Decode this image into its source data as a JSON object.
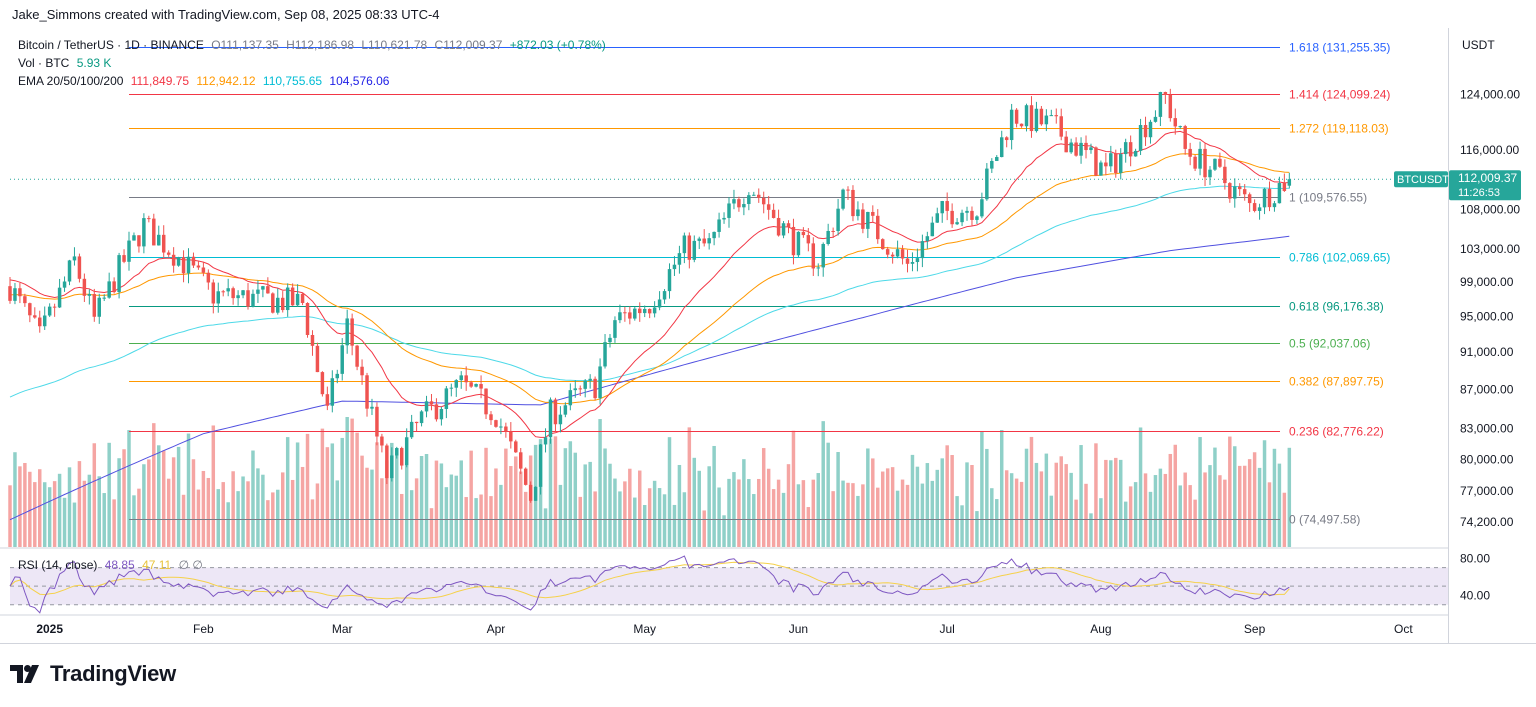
{
  "attribution": "Jake_Simmons created with TradingView.com, Sep 08, 2025 08:33 UTC-4",
  "brand": {
    "name": "TradingView",
    "icon": "tradingview-logo-icon"
  },
  "legend": {
    "symbol": "Bitcoin / TetherUS · 1D · BINANCE",
    "open": "O111,137.35",
    "high": "H112,186.98",
    "low": "L110,621.78",
    "close": "C112,009.37",
    "change": "+872.03 (+0.78%)",
    "volume_label": "Vol · BTC",
    "volume_value": "5.93 K",
    "ema_label": "EMA 20/50/100/200",
    "ema_values": [
      {
        "value": "111,849.75",
        "color": "#f23645"
      },
      {
        "value": "112,942.12",
        "color": "#ff9800"
      },
      {
        "value": "110,755.65",
        "color": "#00bcd4"
      },
      {
        "value": "104,576.06",
        "color": "#1e1ee6"
      }
    ],
    "rsi_label": "RSI (14, close)",
    "rsi_value": "48.85",
    "rsi_ma_value": "47.11",
    "rsi_extra": "∅ ∅"
  },
  "price_axis": {
    "currency": "USDT",
    "ticks": [
      "124,000.00",
      "116,000.00",
      "108,000.00",
      "103,000.00",
      "99,000.00",
      "95,000.00",
      "91,000.00",
      "87,000.00",
      "83,000.00",
      "80,000.00",
      "77,000.00",
      "74,200.00"
    ],
    "current_symbol": "BTCUSDT",
    "current_price": "112,009.37",
    "countdown": "11:26:53"
  },
  "rsi_axis": {
    "ticks": [
      "80.00",
      "40.00"
    ]
  },
  "time_axis": {
    "labels": [
      "2025",
      "Feb",
      "Mar",
      "Apr",
      "May",
      "Jun",
      "Jul",
      "Aug",
      "Sep",
      "Oct"
    ]
  },
  "colors": {
    "up": "#26a69a",
    "down": "#ef5350",
    "up_vol": "#8fd0c8",
    "down_vol": "#f5a5a3",
    "ema20": "#f23645",
    "ema50": "#ff9800",
    "ema100": "#4dd9e8",
    "ema200": "#5050e0",
    "rsi": "#7e57c2",
    "rsi_ma": "#f5d14a"
  },
  "chart_data": {
    "type": "candlestick",
    "title": "Bitcoin / TetherUS · 1D · BINANCE",
    "ylabel": "USDT",
    "y_scale": "log",
    "ylim": [
      72000,
      134000
    ],
    "x_range": [
      "2024-12-24",
      "2025-10-10"
    ],
    "x_ticks": [
      "2025",
      "Feb",
      "Mar",
      "Apr",
      "May",
      "Jun",
      "Jul",
      "Aug",
      "Sep",
      "Oct"
    ],
    "fib_levels": [
      {
        "label": "1.618 (131,255.35)",
        "value": 131255.35,
        "color": "#2962ff"
      },
      {
        "label": "1.414 (124,099.24)",
        "value": 124099.24,
        "color": "#f23645"
      },
      {
        "label": "1.272 (119,118.03)",
        "value": 119118.03,
        "color": "#ff9800"
      },
      {
        "label": "1 (109,576.55)",
        "value": 109576.55,
        "color": "#787b86"
      },
      {
        "label": "0.786 (102,069.65)",
        "value": 102069.65,
        "color": "#00bcd4"
      },
      {
        "label": "0.618 (96,176.38)",
        "value": 96176.38,
        "color": "#089981"
      },
      {
        "label": "0.5 (92,037.06)",
        "value": 92037.06,
        "color": "#4caf50"
      },
      {
        "label": "0.382 (87,897.75)",
        "value": 87897.75,
        "color": "#ff9800"
      },
      {
        "label": "0.236 (82,776.22)",
        "value": 82776.22,
        "color": "#f23645"
      },
      {
        "label": "0 (74,497.58)",
        "value": 74497.58,
        "color": "#787b86"
      }
    ],
    "close_path": [
      {
        "date": "2024-12-24",
        "close": 98500
      },
      {
        "date": "2024-12-30",
        "close": 92500
      },
      {
        "date": "2025-01-06",
        "close": 101500
      },
      {
        "date": "2025-01-10",
        "close": 94500
      },
      {
        "date": "2025-01-15",
        "close": 100500
      },
      {
        "date": "2025-01-20",
        "close": 106000
      },
      {
        "date": "2025-01-27",
        "close": 102000
      },
      {
        "date": "2025-02-03",
        "close": 97500
      },
      {
        "date": "2025-02-12",
        "close": 97000
      },
      {
        "date": "2025-02-21",
        "close": 96500
      },
      {
        "date": "2025-02-26",
        "close": 84500
      },
      {
        "date": "2025-03-02",
        "close": 94000
      },
      {
        "date": "2025-03-10",
        "close": 78500
      },
      {
        "date": "2025-03-17",
        "close": 84000
      },
      {
        "date": "2025-03-25",
        "close": 87500
      },
      {
        "date": "2025-04-01",
        "close": 84500
      },
      {
        "date": "2025-04-08",
        "close": 76500
      },
      {
        "date": "2025-04-12",
        "close": 84500
      },
      {
        "date": "2025-04-21",
        "close": 87500
      },
      {
        "date": "2025-04-25",
        "close": 94500
      },
      {
        "date": "2025-05-02",
        "close": 96500
      },
      {
        "date": "2025-05-09",
        "close": 103000
      },
      {
        "date": "2025-05-14",
        "close": 103500
      },
      {
        "date": "2025-05-22",
        "close": 111500
      },
      {
        "date": "2025-05-31",
        "close": 104000
      },
      {
        "date": "2025-06-05",
        "close": 101500
      },
      {
        "date": "2025-06-10",
        "close": 110000
      },
      {
        "date": "2025-06-20",
        "close": 103000
      },
      {
        "date": "2025-06-23",
        "close": 101000
      },
      {
        "date": "2025-06-30",
        "close": 107500
      },
      {
        "date": "2025-07-07",
        "close": 108500
      },
      {
        "date": "2025-07-14",
        "close": 121000
      },
      {
        "date": "2025-07-22",
        "close": 119500
      },
      {
        "date": "2025-08-02",
        "close": 113000
      },
      {
        "date": "2025-08-07",
        "close": 117000
      },
      {
        "date": "2025-08-14",
        "close": 123500
      },
      {
        "date": "2025-08-18",
        "close": 116000
      },
      {
        "date": "2025-08-24",
        "close": 113000
      },
      {
        "date": "2025-08-31",
        "close": 108500
      },
      {
        "date": "2025-09-08",
        "close": 112009.37
      }
    ],
    "ema200_path": [
      {
        "date": "2024-12-24",
        "value": 74400
      },
      {
        "date": "2025-02-01",
        "value": 82500
      },
      {
        "date": "2025-03-01",
        "value": 85800
      },
      {
        "date": "2025-04-10",
        "value": 85400
      },
      {
        "date": "2025-05-15",
        "value": 90500
      },
      {
        "date": "2025-06-15",
        "value": 95000
      },
      {
        "date": "2025-07-15",
        "value": 99500
      },
      {
        "date": "2025-08-15",
        "value": 102800
      },
      {
        "date": "2025-09-08",
        "value": 104576.06
      }
    ],
    "rsi": {
      "range": [
        20,
        90
      ],
      "levels": [
        70,
        50,
        30
      ],
      "last": 48.85,
      "ma_last": 47.11
    }
  }
}
